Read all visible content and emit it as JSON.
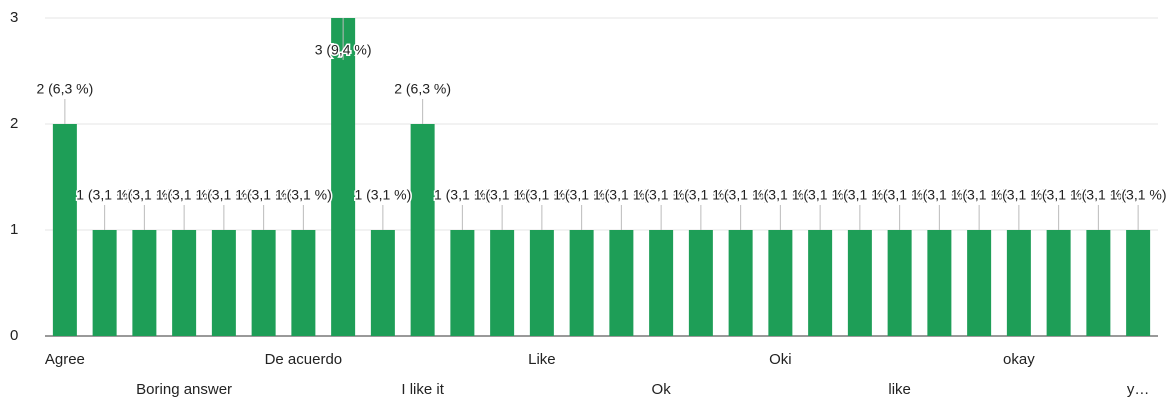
{
  "chart_data": {
    "type": "bar",
    "categories": [
      "Agree",
      null,
      null,
      "Boring answer",
      null,
      null,
      "De acuerdo",
      null,
      null,
      "I like it",
      null,
      null,
      "Like",
      null,
      null,
      "Ok",
      null,
      null,
      "Oki",
      null,
      null,
      "like",
      null,
      null,
      "okay",
      null,
      null,
      "y…"
    ],
    "values": [
      2,
      1,
      1,
      1,
      1,
      1,
      1,
      3,
      1,
      2,
      1,
      1,
      1,
      1,
      1,
      1,
      1,
      1,
      1,
      1,
      1,
      1,
      1,
      1,
      1,
      1,
      1,
      1
    ],
    "value_labels": [
      "2 (6,3 %)",
      "1 (3,1 %)",
      "1 (3,1 %)",
      "1 (3,1 %)",
      "1 (3,1 %)",
      "1 (3,1 %)",
      "1 (3,1 %)",
      "3 (9,4 %)",
      "1 (3,1 %)",
      "2 (6,3 %)",
      "1 (3,1 %)",
      "1 (3,1 %)",
      "1 (3,1 %)",
      "1 (3,1 %)",
      "1 (3,1 %)",
      "1 (3,1 %)",
      "1 (3,1 %)",
      "1 (3,1 %)",
      "1 (3,1 %)",
      "1 (3,1 %)",
      "1 (3,1 %)",
      "1 (3,1 %)",
      "1 (3,1 %)",
      "1 (3,1 %)",
      "1 (3,1 %)",
      "1 (3,1 %)",
      "1 (3,1 %)",
      "1 (3,1 %)"
    ],
    "color": "#1e9e57",
    "ylim": [
      0,
      3
    ],
    "yticks": [
      0,
      1,
      2,
      3
    ],
    "grid": true
  }
}
